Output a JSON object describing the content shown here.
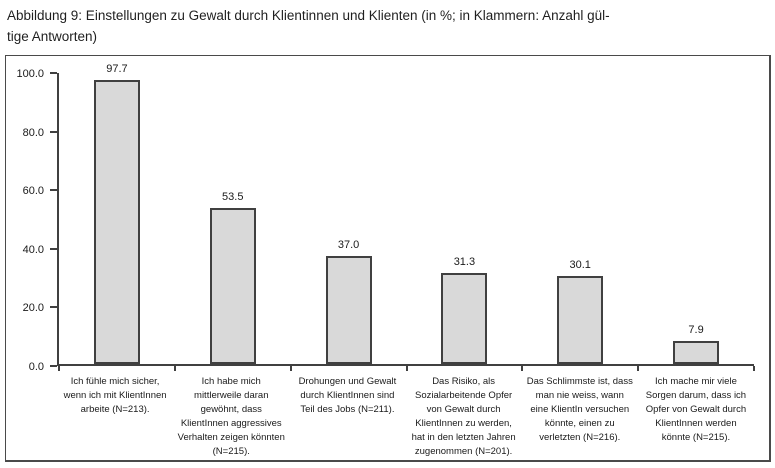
{
  "caption": {
    "line1": "Abbildung 9: Einstellungen zu Gewalt durch Klientinnen und Klienten (in %; in Klammern: Anzahl gül-",
    "line2": "tige Antworten)"
  },
  "chart_data": {
    "type": "bar",
    "title": "Abbildung 9: Einstellungen zu Gewalt durch Klientinnen und Klienten (in %; in Klammern: Anzahl gültige Antworten)",
    "categories": [
      "Ich fühle mich sicher, wenn ich mit KlientInnen arbeite (N=213).",
      "Ich habe mich mittlerweile daran gewöhnt, dass KlientInnen aggressives Verhalten zeigen könnten (N=215).",
      "Drohungen und Gewalt durch KlientInnen sind Teil des Jobs (N=211).",
      "Das Risiko, als Sozialarbeitende Opfer von Gewalt durch KlientInnen zu werden, hat in den letzten Jahren zugenommen (N=201).",
      "Das Schlimmste ist, dass man nie weiss, wann eine KlientIn versuchen könnte, einen zu verletzten (N=216).",
      "Ich mache mir viele Sorgen darum, dass ich Opfer von Gewalt durch KlientInnen werden könnte (N=215)."
    ],
    "values": [
      97.7,
      53.5,
      37.0,
      31.3,
      30.1,
      7.9
    ],
    "value_labels": [
      "97.7",
      "53.5",
      "37.0",
      "31.3",
      "30.1",
      "7.9"
    ],
    "y_ticks": [
      {
        "value": 0,
        "label": "0.0"
      },
      {
        "value": 20,
        "label": "20.0"
      },
      {
        "value": 40,
        "label": "40.0"
      },
      {
        "value": 60,
        "label": "60.0"
      },
      {
        "value": 80,
        "label": "80.0"
      },
      {
        "value": 100,
        "label": "100.0"
      }
    ],
    "xlabel": "",
    "ylabel": "",
    "ylim": [
      0,
      100
    ],
    "grid": false,
    "legend": false,
    "colors": {
      "bar_fill": "#d9d9d9",
      "bar_border": "#404040",
      "axis": "#404040",
      "text": "#1a1a1a",
      "frame_border": "#4a4a4a"
    }
  }
}
